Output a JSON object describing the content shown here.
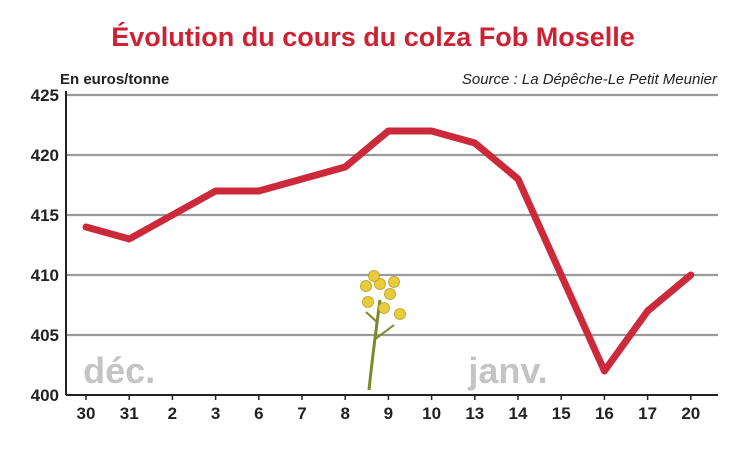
{
  "colors": {
    "title": "#cc2233",
    "line": "#cc2a3a",
    "grid": "#9a9a9a",
    "text": "#222222",
    "month_label": "#c4c4c4",
    "stem": "#7a8a2a",
    "flower": "#e8cc3a"
  },
  "chart_data": {
    "type": "line",
    "title": "Évolution du cours du colza Fob Moselle",
    "unit_label": "En euros/tonne",
    "source": "Source : La Dépêche-Le Petit Meunier",
    "categories": [
      "30",
      "31",
      "2",
      "3",
      "6",
      "7",
      "8",
      "9",
      "10",
      "13",
      "14",
      "15",
      "16",
      "17",
      "20"
    ],
    "values": [
      414,
      413,
      415,
      417,
      417,
      418,
      419,
      422,
      422,
      421,
      418,
      410,
      402,
      407,
      410
    ],
    "ylim": [
      400,
      425
    ],
    "yticks": [
      "400",
      "405",
      "410",
      "415",
      "420",
      "425"
    ],
    "grid": true,
    "month_labels": [
      {
        "text": "déc.",
        "category": "31"
      },
      {
        "text": "janv.",
        "category": "14"
      }
    ],
    "decoration": "rapeseed-flower-icon"
  }
}
